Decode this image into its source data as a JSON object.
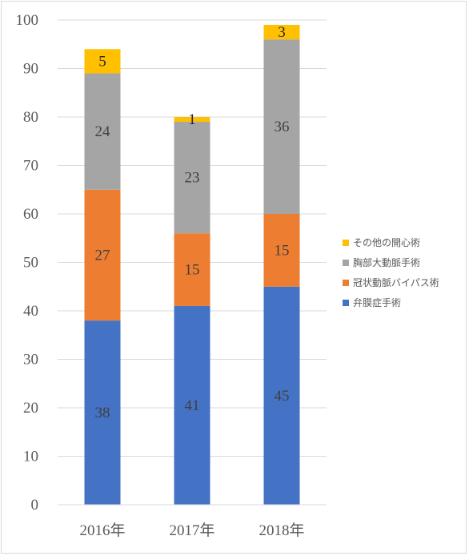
{
  "chart_data": {
    "type": "bar",
    "stacked": true,
    "categories": [
      "2016年",
      "2017年",
      "2018年"
    ],
    "series": [
      {
        "name": "弁膜症手術",
        "values": [
          38,
          41,
          45
        ],
        "color": "#4472c4",
        "label_color": "#404040"
      },
      {
        "name": "冠状動脈バイパス術",
        "values": [
          27,
          15,
          15
        ],
        "color": "#ed7d31",
        "label_color": "#404040"
      },
      {
        "name": "胸部大動脈手術",
        "values": [
          24,
          23,
          36
        ],
        "color": "#a5a5a5",
        "label_color": "#404040"
      },
      {
        "name": "その他の開心術",
        "values": [
          5,
          1,
          3
        ],
        "color": "#ffc000",
        "label_color": "#262626"
      }
    ],
    "ylim": [
      0,
      100
    ],
    "yticks": [
      0,
      10,
      20,
      30,
      40,
      50,
      60,
      70,
      80,
      90,
      100
    ],
    "grid": true,
    "legend_position": "right",
    "legend_order": [
      "その他の開心術",
      "胸部大動脈手術",
      "冠状動脈バイパス術",
      "弁膜症手術"
    ],
    "gridline_color": "#d9d9d9"
  }
}
